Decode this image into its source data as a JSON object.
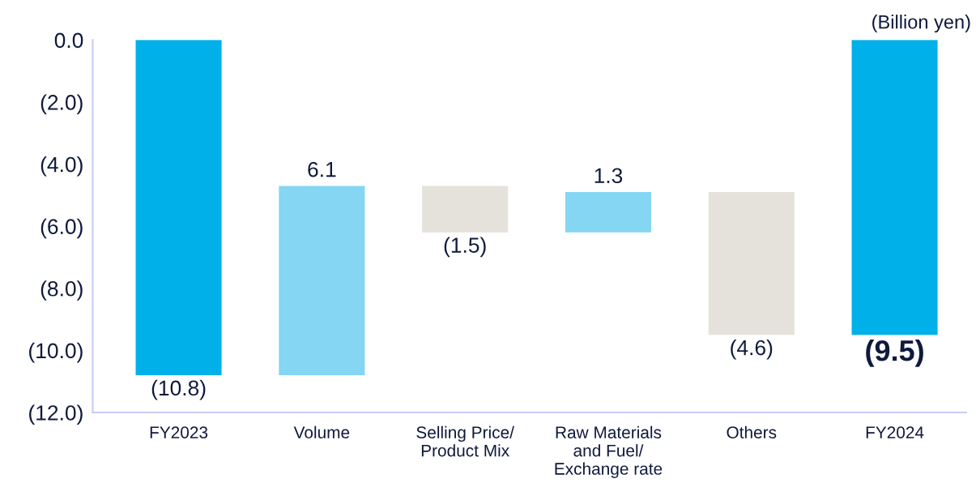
{
  "chart_data": {
    "type": "bar",
    "categories": [
      "FY2023",
      "Volume",
      "Selling Price/\nProduct Mix",
      "Raw Materials\nand Fuel/\nExchange rate",
      "Others",
      "FY2024"
    ],
    "values": [
      -10.8,
      6.1,
      -1.5,
      1.3,
      -4.6,
      -9.5
    ],
    "base": [
      0,
      -10.8,
      -4.7,
      -6.2,
      -4.9,
      0
    ],
    "colors": [
      "#00b0e8",
      "#84d6f2",
      "#e5e2dc",
      "#84d6f2",
      "#e5e2dc",
      "#00b0e8"
    ],
    "value_labels": [
      "(10.8)",
      "6.1",
      "(1.5)",
      "1.3",
      "(4.6)",
      "(9.5)"
    ],
    "ylim": [
      -12,
      0
    ],
    "yticks": [
      {
        "value": 0,
        "label": "0.0"
      },
      {
        "value": -2,
        "label": "(2.0)"
      },
      {
        "value": -4,
        "label": "(4.0)"
      },
      {
        "value": -6,
        "label": "(6.0)"
      },
      {
        "value": -8,
        "label": "(8.0)"
      },
      {
        "value": -10,
        "label": "(10.0)"
      },
      {
        "value": -12,
        "label": "(12.0)"
      }
    ],
    "annotations": [
      "(Billion yen)"
    ],
    "grid": false,
    "legend": false
  }
}
